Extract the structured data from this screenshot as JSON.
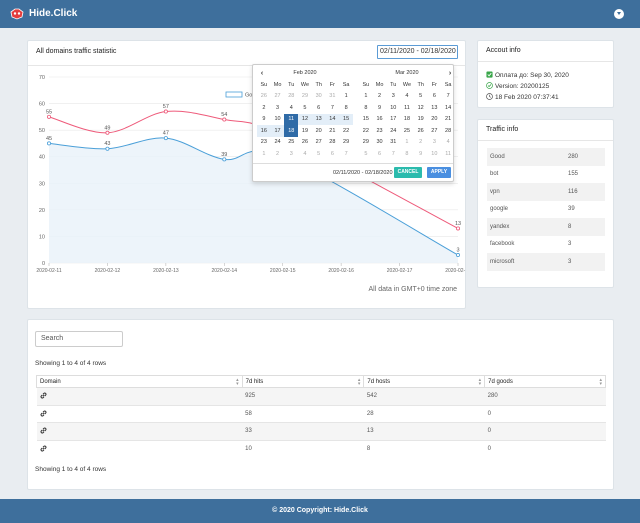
{
  "header": {
    "brand": "Hide.Click",
    "colors": {
      "bar": "#3e6f9c"
    }
  },
  "chart": {
    "title": "All domains traffic statistic",
    "date_range_value": "02/11/2020 - 02/18/2020",
    "timezone_note": "All data in GMT+0 time zone",
    "legend_good": "Good traffic"
  },
  "chart_data": {
    "type": "line",
    "x": [
      "2020-02-11",
      "2020-02-12",
      "2020-02-13",
      "2020-02-14",
      "2020-02-15",
      "2020-02-16",
      "2020-02-17",
      "2020-02-18"
    ],
    "ylim": [
      0,
      70
    ],
    "yticks": [
      0,
      10,
      20,
      30,
      40,
      50,
      60,
      70
    ],
    "grid": true,
    "legend": "top-center",
    "series": [
      {
        "name": "Good traffic",
        "color": "#4a9fd8",
        "values": [
          45,
          43,
          47,
          39,
          40,
          null,
          null,
          3
        ],
        "labels": [
          "45",
          "43",
          "47",
          "39",
          "",
          "",
          "",
          "3"
        ]
      },
      {
        "name": "",
        "color": "#ee5a7a",
        "values": [
          55,
          49,
          57,
          54,
          48,
          null,
          null,
          13
        ],
        "labels": [
          "55",
          "49",
          "57",
          "54",
          "",
          "",
          "",
          "13"
        ]
      }
    ]
  },
  "datepicker": {
    "weekdays": [
      "Su",
      "Mo",
      "Tu",
      "We",
      "Th",
      "Fr",
      "Sa"
    ],
    "left": {
      "month": "Feb 2020",
      "weeks": [
        [
          {
            "d": "26",
            "c": "off"
          },
          {
            "d": "27",
            "c": "off"
          },
          {
            "d": "28",
            "c": "off"
          },
          {
            "d": "29",
            "c": "off"
          },
          {
            "d": "30",
            "c": "off"
          },
          {
            "d": "31",
            "c": "off"
          },
          {
            "d": "1",
            "c": ""
          }
        ],
        [
          {
            "d": "2",
            "c": ""
          },
          {
            "d": "3",
            "c": ""
          },
          {
            "d": "4",
            "c": ""
          },
          {
            "d": "5",
            "c": ""
          },
          {
            "d": "6",
            "c": ""
          },
          {
            "d": "7",
            "c": ""
          },
          {
            "d": "8",
            "c": ""
          }
        ],
        [
          {
            "d": "9",
            "c": ""
          },
          {
            "d": "10",
            "c": ""
          },
          {
            "d": "11",
            "c": "sel"
          },
          {
            "d": "12",
            "c": "inrange"
          },
          {
            "d": "13",
            "c": "inrange"
          },
          {
            "d": "14",
            "c": "inrange"
          },
          {
            "d": "15",
            "c": "inrange"
          }
        ],
        [
          {
            "d": "16",
            "c": "inrange"
          },
          {
            "d": "17",
            "c": "inrange"
          },
          {
            "d": "18",
            "c": "sel"
          },
          {
            "d": "19",
            "c": ""
          },
          {
            "d": "20",
            "c": ""
          },
          {
            "d": "21",
            "c": ""
          },
          {
            "d": "22",
            "c": ""
          }
        ],
        [
          {
            "d": "23",
            "c": ""
          },
          {
            "d": "24",
            "c": ""
          },
          {
            "d": "25",
            "c": ""
          },
          {
            "d": "26",
            "c": ""
          },
          {
            "d": "27",
            "c": ""
          },
          {
            "d": "28",
            "c": ""
          },
          {
            "d": "29",
            "c": ""
          }
        ],
        [
          {
            "d": "1",
            "c": "off"
          },
          {
            "d": "2",
            "c": "off"
          },
          {
            "d": "3",
            "c": "off"
          },
          {
            "d": "4",
            "c": "off"
          },
          {
            "d": "5",
            "c": "off"
          },
          {
            "d": "6",
            "c": "off"
          },
          {
            "d": "7",
            "c": "off"
          }
        ]
      ]
    },
    "right": {
      "month": "Mar 2020",
      "weeks": [
        [
          {
            "d": "1",
            "c": ""
          },
          {
            "d": "2",
            "c": ""
          },
          {
            "d": "3",
            "c": ""
          },
          {
            "d": "4",
            "c": ""
          },
          {
            "d": "5",
            "c": ""
          },
          {
            "d": "6",
            "c": ""
          },
          {
            "d": "7",
            "c": ""
          }
        ],
        [
          {
            "d": "8",
            "c": ""
          },
          {
            "d": "9",
            "c": ""
          },
          {
            "d": "10",
            "c": ""
          },
          {
            "d": "11",
            "c": ""
          },
          {
            "d": "12",
            "c": ""
          },
          {
            "d": "13",
            "c": ""
          },
          {
            "d": "14",
            "c": ""
          }
        ],
        [
          {
            "d": "15",
            "c": ""
          },
          {
            "d": "16",
            "c": ""
          },
          {
            "d": "17",
            "c": ""
          },
          {
            "d": "18",
            "c": ""
          },
          {
            "d": "19",
            "c": ""
          },
          {
            "d": "20",
            "c": ""
          },
          {
            "d": "21",
            "c": ""
          }
        ],
        [
          {
            "d": "22",
            "c": ""
          },
          {
            "d": "23",
            "c": ""
          },
          {
            "d": "24",
            "c": ""
          },
          {
            "d": "25",
            "c": ""
          },
          {
            "d": "26",
            "c": ""
          },
          {
            "d": "27",
            "c": ""
          },
          {
            "d": "28",
            "c": ""
          }
        ],
        [
          {
            "d": "29",
            "c": ""
          },
          {
            "d": "30",
            "c": ""
          },
          {
            "d": "31",
            "c": ""
          },
          {
            "d": "1",
            "c": "off"
          },
          {
            "d": "2",
            "c": "off"
          },
          {
            "d": "3",
            "c": "off"
          },
          {
            "d": "4",
            "c": "off"
          }
        ],
        [
          {
            "d": "5",
            "c": "off"
          },
          {
            "d": "6",
            "c": "off"
          },
          {
            "d": "7",
            "c": "off"
          },
          {
            "d": "8",
            "c": "off"
          },
          {
            "d": "9",
            "c": "off"
          },
          {
            "d": "10",
            "c": "off"
          },
          {
            "d": "11",
            "c": "off"
          }
        ]
      ]
    },
    "range_text": "02/11/2020 - 02/18/2020",
    "cancel_label": "CANCEL",
    "apply_label": "APPLY"
  },
  "account_info": {
    "title": "Accout info",
    "paid_until": "Оплата до: Sep 30, 2020",
    "version": "Version: 20200125",
    "datetime": "18 Feb 2020 07:37:41"
  },
  "traffic_info": {
    "title": "Traffic info",
    "rows": [
      {
        "label": "Good",
        "value": "280"
      },
      {
        "label": "bot",
        "value": "155"
      },
      {
        "label": "vpn",
        "value": "116"
      },
      {
        "label": "google",
        "value": "39"
      },
      {
        "label": "yandex",
        "value": "8"
      },
      {
        "label": "facebook",
        "value": "3"
      },
      {
        "label": "microsoft",
        "value": "3"
      }
    ]
  },
  "domains": {
    "search_placeholder": "Search",
    "rows_info_top": "Showing 1 to 4 of 4 rows",
    "rows_info_bottom": "Showing 1 to 4 of 4 rows",
    "columns": [
      "Domain",
      "7d hits",
      "7d hosts",
      "7d goods"
    ],
    "rows": [
      {
        "hits": "925",
        "hosts": "542",
        "goods": "280"
      },
      {
        "hits": "58",
        "hosts": "28",
        "goods": "0"
      },
      {
        "hits": "33",
        "hosts": "13",
        "goods": "0"
      },
      {
        "hits": "10",
        "hosts": "8",
        "goods": "0"
      }
    ]
  },
  "footer": {
    "text": "© 2020 Copyright: Hide.Click"
  }
}
